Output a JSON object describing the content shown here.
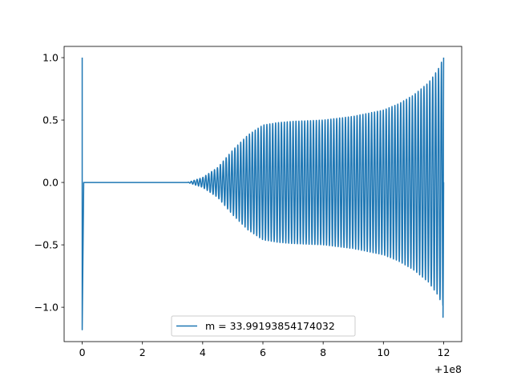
{
  "chart_data": {
    "type": "line",
    "title": "",
    "xlabel": "",
    "ylabel": "",
    "x_offset_label": "+1e8",
    "xlim": [
      -0.6,
      12.6
    ],
    "ylim": [
      -1.275,
      1.09
    ],
    "x_ticks": [
      0,
      2,
      4,
      6,
      8,
      10,
      12
    ],
    "x_tick_labels": [
      "0",
      "2",
      "4",
      "6",
      "8",
      "10",
      "12"
    ],
    "y_ticks": [
      1.0,
      0.5,
      0.0,
      -0.5,
      -1.0
    ],
    "y_tick_labels": [
      "1.0",
      "0.5",
      "0.0",
      "−0.5",
      "−1.0"
    ],
    "grid": false,
    "legend_position": "bottom-center",
    "series": [
      {
        "name": "m = 33.99193854174032",
        "color": "#1f77b4",
        "initial_spike": {
          "x": 0.0,
          "max": 1.0,
          "min": -1.18
        },
        "flat_segment": {
          "x_start": 0.05,
          "x_end": 3.5,
          "y": 0.0
        },
        "oscillation": {
          "x_start": 3.5,
          "x_end": 12.0,
          "cycles": 88,
          "envelope": [
            [
              3.5,
              0.0
            ],
            [
              4.0,
              0.04
            ],
            [
              4.5,
              0.12
            ],
            [
              5.0,
              0.26
            ],
            [
              5.5,
              0.38
            ],
            [
              6.0,
              0.46
            ],
            [
              6.5,
              0.48
            ],
            [
              7.0,
              0.49
            ],
            [
              8.0,
              0.5
            ],
            [
              9.0,
              0.53
            ],
            [
              10.0,
              0.58
            ],
            [
              10.5,
              0.63
            ],
            [
              11.0,
              0.7
            ],
            [
              11.5,
              0.8
            ],
            [
              11.8,
              0.9
            ],
            [
              12.0,
              1.0
            ]
          ],
          "end_min": -1.08
        }
      }
    ]
  }
}
